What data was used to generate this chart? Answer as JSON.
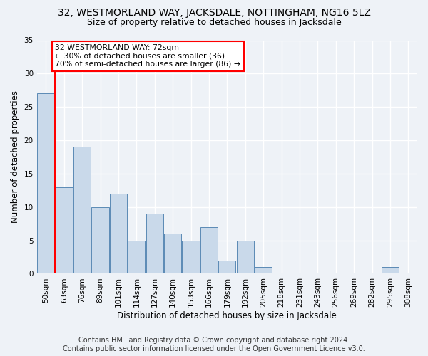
{
  "title": "32, WESTMORLAND WAY, JACKSDALE, NOTTINGHAM, NG16 5LZ",
  "subtitle": "Size of property relative to detached houses in Jacksdale",
  "xlabel": "Distribution of detached houses by size in Jacksdale",
  "ylabel": "Number of detached properties",
  "footer_line1": "Contains HM Land Registry data © Crown copyright and database right 2024.",
  "footer_line2": "Contains public sector information licensed under the Open Government Licence v3.0.",
  "categories": [
    "50sqm",
    "63sqm",
    "76sqm",
    "89sqm",
    "101sqm",
    "114sqm",
    "127sqm",
    "140sqm",
    "153sqm",
    "166sqm",
    "179sqm",
    "192sqm",
    "205sqm",
    "218sqm",
    "231sqm",
    "243sqm",
    "256sqm",
    "269sqm",
    "282sqm",
    "295sqm",
    "308sqm"
  ],
  "values": [
    27,
    13,
    19,
    10,
    12,
    5,
    9,
    6,
    5,
    7,
    2,
    5,
    1,
    0,
    0,
    0,
    0,
    0,
    0,
    1,
    0
  ],
  "bar_color": "#c9d9ea",
  "bar_edge_color": "#5a8ab5",
  "ylim": [
    0,
    35
  ],
  "yticks": [
    0,
    5,
    10,
    15,
    20,
    25,
    30,
    35
  ],
  "property_label": "32 WESTMORLAND WAY: 72sqm",
  "pct_smaller": 30,
  "n_smaller": 36,
  "pct_larger_semi": 70,
  "n_larger_semi": 86,
  "vline_x": 0.5,
  "background_color": "#eef2f7",
  "grid_color": "#ffffff",
  "title_fontsize": 10,
  "subtitle_fontsize": 9,
  "axis_label_fontsize": 8.5,
  "tick_fontsize": 7.5,
  "footer_fontsize": 7
}
